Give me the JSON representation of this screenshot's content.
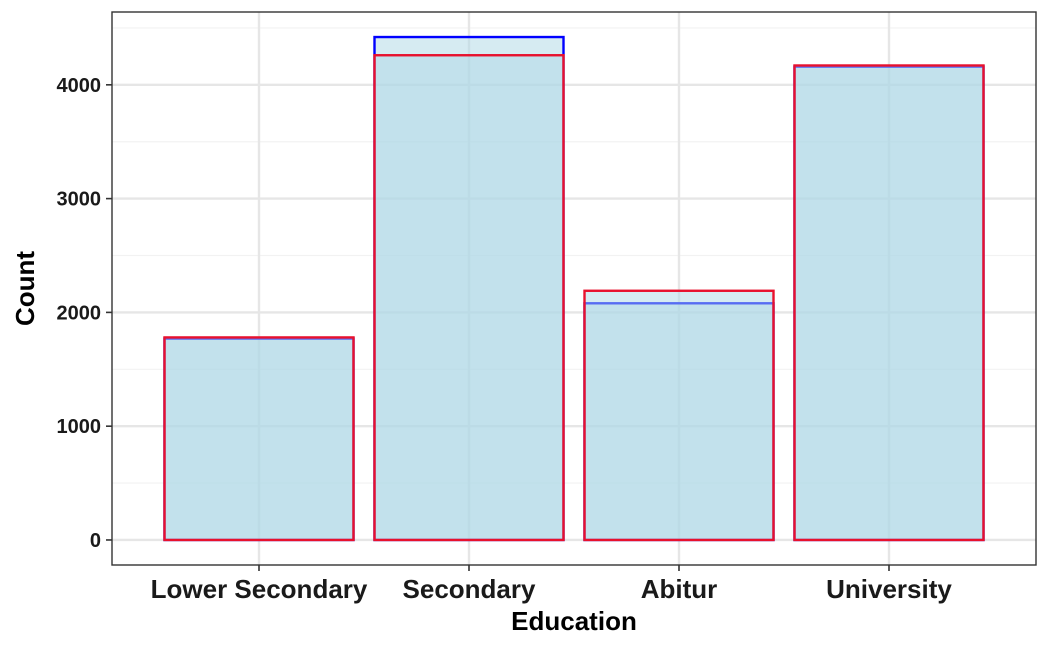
{
  "chart_data": {
    "type": "bar",
    "title": "",
    "xlabel": "Education",
    "ylabel": "Count",
    "categories": [
      "Lower Secondary",
      "Secondary",
      "Abitur",
      "University"
    ],
    "ylim": [
      -220,
      4640
    ],
    "yticks": [
      0,
      1000,
      2000,
      3000,
      4000
    ],
    "grid": true,
    "series": [
      {
        "values": [
          1770,
          4420,
          2080,
          4160
        ],
        "fill": "#add8e6",
        "stroke": "#0000ff"
      },
      {
        "values": [
          1780,
          4260,
          2190,
          4170
        ],
        "fill": "#add8e6",
        "stroke": "#e8112d"
      }
    ]
  },
  "colors": {
    "panel_border": "#333333",
    "grid_major": "#e6e6e6",
    "grid_minor": "#f2f2f2",
    "bar_fill": "#cbe4ed"
  }
}
